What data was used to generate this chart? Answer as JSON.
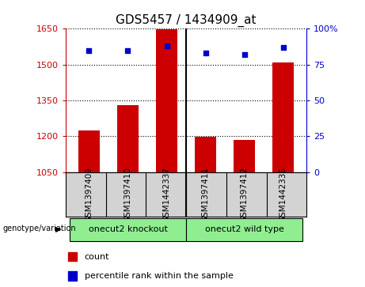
{
  "title": "GDS5457 / 1434909_at",
  "samples": [
    "GSM1397409",
    "GSM1397410",
    "GSM1442337",
    "GSM1397411",
    "GSM1397412",
    "GSM1442336"
  ],
  "counts": [
    1225,
    1330,
    1648,
    1198,
    1185,
    1510
  ],
  "percentile_ranks": [
    85,
    85,
    88,
    83,
    82,
    87
  ],
  "ylim_left": [
    1050,
    1650
  ],
  "yticks_left": [
    1050,
    1200,
    1350,
    1500,
    1650
  ],
  "ylim_right": [
    0,
    100
  ],
  "yticks_right": [
    0,
    25,
    50,
    75,
    100
  ],
  "bar_color": "#cc0000",
  "dot_color": "#0000cc",
  "groups": [
    {
      "label": "onecut2 knockout",
      "start": 0,
      "end": 3,
      "color": "#90ee90"
    },
    {
      "label": "onecut2 wild type",
      "start": 3,
      "end": 6,
      "color": "#90ee90"
    }
  ],
  "group_label": "genotype/variation",
  "legend_items": [
    {
      "color": "#cc0000",
      "label": "count"
    },
    {
      "color": "#0000cc",
      "label": "percentile rank within the sample"
    }
  ],
  "sample_bg_color": "#d3d3d3",
  "plot_bg_color": "#ffffff",
  "left_tick_color": "#cc0000",
  "right_tick_color": "#0000cc",
  "title_fontsize": 11,
  "label_fontsize": 7.5,
  "legend_fontsize": 8,
  "group_fontsize": 8
}
